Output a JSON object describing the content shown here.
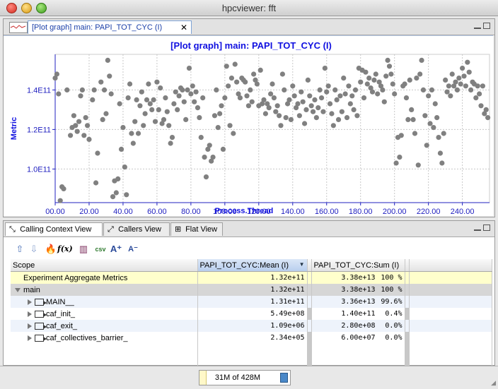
{
  "window": {
    "title": "hpcviewer: fft"
  },
  "plot_tab": {
    "label": "[Plot graph] main: PAPI_TOT_CYC (I)"
  },
  "chart_data": {
    "type": "scatter",
    "title": "[Plot graph] main: PAPI_TOT_CYC (I)",
    "xlabel": "Process.Thread",
    "ylabel": "Metric",
    "xlim": [
      0,
      256
    ],
    "ylim": [
      83000000000.0,
      158000000000.0
    ],
    "xticks": [
      {
        "v": 0,
        "label": "00.00"
      },
      {
        "v": 20,
        "label": "20.00"
      },
      {
        "v": 40,
        "label": "40.00"
      },
      {
        "v": 60,
        "label": "60.00"
      },
      {
        "v": 80,
        "label": "80.00"
      },
      {
        "v": 100,
        "label": "100.00"
      },
      {
        "v": 120,
        "label": "120.00"
      },
      {
        "v": 140,
        "label": "140.00"
      },
      {
        "v": 160,
        "label": "160.00"
      },
      {
        "v": 180,
        "label": "180.00"
      },
      {
        "v": 200,
        "label": "200.00"
      },
      {
        "v": 220,
        "label": "220.00"
      },
      {
        "v": 240,
        "label": "240.00"
      }
    ],
    "yticks": [
      {
        "v": 100000000000.0,
        "label": "1.0E11"
      },
      {
        "v": 120000000000.0,
        "label": "1.2E11"
      },
      {
        "v": 140000000000.0,
        "label": "1.4E11"
      }
    ],
    "grid": true,
    "point_color": "#808080",
    "points": [
      [
        0,
        146000000000.0
      ],
      [
        1,
        148000000000.0
      ],
      [
        2,
        138000000000.0
      ],
      [
        3,
        84000000000.0
      ],
      [
        4,
        91000000000.0
      ],
      [
        5,
        90000000000.0
      ],
      [
        7,
        140000000000.0
      ],
      [
        9,
        117000000000.0
      ],
      [
        10,
        121000000000.0
      ],
      [
        11,
        127000000000.0
      ],
      [
        12,
        122000000000.0
      ],
      [
        13,
        119000000000.0
      ],
      [
        14,
        124000000000.0
      ],
      [
        15,
        137000000000.0
      ],
      [
        16,
        140000000000.0
      ],
      [
        17,
        117000000000.0
      ],
      [
        18,
        126000000000.0
      ],
      [
        19,
        122000000000.0
      ],
      [
        20,
        115000000000.0
      ],
      [
        22,
        135000000000.0
      ],
      [
        23,
        140000000000.0
      ],
      [
        24,
        93000000000.0
      ],
      [
        25,
        108000000000.0
      ],
      [
        27,
        144000000000.0
      ],
      [
        28,
        125000000000.0
      ],
      [
        29,
        140000000000.0
      ],
      [
        30,
        128000000000.0
      ],
      [
        31,
        155000000000.0
      ],
      [
        32,
        147000000000.0
      ],
      [
        33,
        138000000000.0
      ],
      [
        34,
        86000000000.0
      ],
      [
        35,
        94000000000.0
      ],
      [
        36,
        88000000000.0
      ],
      [
        37,
        95000000000.0
      ],
      [
        38,
        133000000000.0
      ],
      [
        39,
        110000000000.0
      ],
      [
        40,
        121000000000.0
      ],
      [
        41,
        101000000000.0
      ],
      [
        42,
        87000000000.0
      ],
      [
        43,
        136000000000.0
      ],
      [
        44,
        143000000000.0
      ],
      [
        45,
        118000000000.0
      ],
      [
        46,
        113000000000.0
      ],
      [
        47,
        124000000000.0
      ],
      [
        48,
        135000000000.0
      ],
      [
        49,
        118000000000.0
      ],
      [
        50,
        132000000000.0
      ],
      [
        51,
        139000000000.0
      ],
      [
        52,
        122000000000.0
      ],
      [
        53,
        128000000000.0
      ],
      [
        54,
        135000000000.0
      ],
      [
        55,
        143000000000.0
      ],
      [
        56,
        133000000000.0
      ],
      [
        57,
        130000000000.0
      ],
      [
        58,
        135000000000.0
      ],
      [
        59,
        124000000000.0
      ],
      [
        60,
        144000000000.0
      ],
      [
        61,
        130000000000.0
      ],
      [
        62,
        141000000000.0
      ],
      [
        63,
        123000000000.0
      ],
      [
        64,
        125000000000.0
      ],
      [
        65,
        136000000000.0
      ],
      [
        66,
        129000000000.0
      ],
      [
        67,
        122000000000.0
      ],
      [
        68,
        113000000000.0
      ],
      [
        69,
        116000000000.0
      ],
      [
        70,
        133000000000.0
      ],
      [
        71,
        139000000000.0
      ],
      [
        72,
        130000000000.0
      ],
      [
        73,
        137000000000.0
      ],
      [
        74,
        141000000000.0
      ],
      [
        75,
        140000000000.0
      ],
      [
        76,
        134000000000.0
      ],
      [
        77,
        125000000000.0
      ],
      [
        78,
        140000000000.0
      ],
      [
        79,
        151000000000.0
      ],
      [
        80,
        138000000000.0
      ],
      [
        81,
        142000000000.0
      ],
      [
        82,
        134000000000.0
      ],
      [
        83,
        139000000000.0
      ],
      [
        84,
        131000000000.0
      ],
      [
        85,
        126000000000.0
      ],
      [
        86,
        116000000000.0
      ],
      [
        87,
        136000000000.0
      ],
      [
        88,
        106000000000.0
      ],
      [
        89,
        96000000000.0
      ],
      [
        90,
        110000000000.0
      ],
      [
        91,
        112000000000.0
      ],
      [
        92,
        104000000000.0
      ],
      [
        93,
        106000000000.0
      ],
      [
        94,
        127000000000.0
      ],
      [
        95,
        140000000000.0
      ],
      [
        96,
        121000000000.0
      ],
      [
        97,
        128000000000.0
      ],
      [
        98,
        132000000000.0
      ],
      [
        99,
        110000000000.0
      ],
      [
        100,
        136000000000.0
      ],
      [
        101,
        152000000000.0
      ],
      [
        102,
        142000000000.0
      ],
      [
        103,
        122000000000.0
      ],
      [
        104,
        146000000000.0
      ],
      [
        105,
        118000000000.0
      ],
      [
        106,
        153000000000.0
      ],
      [
        107,
        144000000000.0
      ],
      [
        108,
        138000000000.0
      ],
      [
        109,
        136000000000.0
      ],
      [
        110,
        146000000000.0
      ],
      [
        111,
        145000000000.0
      ],
      [
        112,
        144000000000.0
      ],
      [
        113,
        137000000000.0
      ],
      [
        114,
        132000000000.0
      ],
      [
        115,
        140000000000.0
      ],
      [
        116,
        134000000000.0
      ],
      [
        117,
        148000000000.0
      ],
      [
        118,
        145000000000.0
      ],
      [
        119,
        143000000000.0
      ],
      [
        120,
        132000000000.0
      ],
      [
        121,
        150000000000.0
      ],
      [
        122,
        133000000000.0
      ],
      [
        123,
        135000000000.0
      ],
      [
        124,
        128000000000.0
      ],
      [
        125,
        133000000000.0
      ],
      [
        126,
        131000000000.0
      ],
      [
        127,
        138000000000.0
      ],
      [
        128,
        143000000000.0
      ],
      [
        129,
        136000000000.0
      ],
      [
        130,
        129000000000.0
      ],
      [
        131,
        132000000000.0
      ],
      [
        132,
        127000000000.0
      ],
      [
        133,
        122000000000.0
      ],
      [
        134,
        148000000000.0
      ],
      [
        135,
        140000000000.0
      ],
      [
        136,
        126000000000.0
      ],
      [
        137,
        133000000000.0
      ],
      [
        138,
        135000000000.0
      ],
      [
        139,
        125000000000.0
      ],
      [
        140,
        142000000000.0
      ],
      [
        141,
        137000000000.0
      ],
      [
        142,
        131000000000.0
      ],
      [
        143,
        133000000000.0
      ],
      [
        144,
        127000000000.0
      ],
      [
        145,
        139000000000.0
      ],
      [
        146,
        134000000000.0
      ],
      [
        147,
        123000000000.0
      ],
      [
        148,
        130000000000.0
      ],
      [
        149,
        145000000000.0
      ],
      [
        150,
        137000000000.0
      ],
      [
        151,
        132000000000.0
      ],
      [
        152,
        129000000000.0
      ],
      [
        153,
        135000000000.0
      ],
      [
        154,
        126000000000.0
      ],
      [
        155,
        131000000000.0
      ],
      [
        156,
        140000000000.0
      ],
      [
        157,
        136000000000.0
      ],
      [
        158,
        129000000000.0
      ],
      [
        159,
        151000000000.0
      ],
      [
        160,
        139000000000.0
      ],
      [
        161,
        142000000000.0
      ],
      [
        162,
        133000000000.0
      ],
      [
        163,
        128000000000.0
      ],
      [
        164,
        122000000000.0
      ],
      [
        165,
        140000000000.0
      ],
      [
        166,
        135000000000.0
      ],
      [
        167,
        125000000000.0
      ],
      [
        168,
        137000000000.0
      ],
      [
        169,
        129000000000.0
      ],
      [
        170,
        146000000000.0
      ],
      [
        171,
        138000000000.0
      ],
      [
        172,
        126000000000.0
      ],
      [
        173,
        142000000000.0
      ],
      [
        174,
        133000000000.0
      ],
      [
        175,
        137000000000.0
      ],
      [
        176,
        130000000000.0
      ],
      [
        177,
        140000000000.0
      ],
      [
        178,
        127000000000.0
      ],
      [
        179,
        151000000000.0
      ],
      [
        180,
        144000000000.0
      ],
      [
        181,
        150000000000.0
      ],
      [
        182,
        136000000000.0
      ],
      [
        183,
        149000000000.0
      ],
      [
        184,
        143000000000.0
      ],
      [
        185,
        146000000000.0
      ],
      [
        186,
        141000000000.0
      ],
      [
        187,
        139000000000.0
      ],
      [
        188,
        145000000000.0
      ],
      [
        189,
        148000000000.0
      ],
      [
        190,
        138000000000.0
      ],
      [
        191,
        144000000000.0
      ],
      [
        192,
        142000000000.0
      ],
      [
        193,
        140000000000.0
      ],
      [
        194,
        134000000000.0
      ],
      [
        195,
        147000000000.0
      ],
      [
        196,
        155000000000.0
      ],
      [
        197,
        152000000000.0
      ],
      [
        198,
        148000000000.0
      ],
      [
        199,
        143000000000.0
      ],
      [
        200,
        138000000000.0
      ],
      [
        201,
        103000000000.0
      ],
      [
        202,
        116000000000.0
      ],
      [
        203,
        106000000000.0
      ],
      [
        204,
        117000000000.0
      ],
      [
        205,
        142000000000.0
      ],
      [
        206,
        143000000000.0
      ],
      [
        207,
        136000000000.0
      ],
      [
        208,
        125000000000.0
      ],
      [
        209,
        145000000000.0
      ],
      [
        210,
        130000000000.0
      ],
      [
        211,
        125000000000.0
      ],
      [
        212,
        118000000000.0
      ],
      [
        213,
        146000000000.0
      ],
      [
        214,
        102000000000.0
      ],
      [
        215,
        148000000000.0
      ],
      [
        216,
        155000000000.0
      ],
      [
        217,
        140000000000.0
      ],
      [
        218,
        127000000000.0
      ],
      [
        219,
        112000000000.0
      ],
      [
        220,
        137000000000.0
      ],
      [
        221,
        123000000000.0
      ],
      [
        222,
        140000000000.0
      ],
      [
        223,
        121000000000.0
      ],
      [
        224,
        133000000000.0
      ],
      [
        225,
        126000000000.0
      ],
      [
        226,
        116000000000.0
      ],
      [
        227,
        108000000000.0
      ],
      [
        228,
        103000000000.0
      ],
      [
        229,
        118000000000.0
      ],
      [
        230,
        145000000000.0
      ],
      [
        231,
        139000000000.0
      ],
      [
        232,
        142000000000.0
      ],
      [
        233,
        137000000000.0
      ],
      [
        234,
        148000000000.0
      ],
      [
        235,
        142000000000.0
      ],
      [
        236,
        144000000000.0
      ],
      [
        237,
        140000000000.0
      ],
      [
        238,
        146000000000.0
      ],
      [
        239,
        143000000000.0
      ],
      [
        240,
        151000000000.0
      ],
      [
        241,
        147000000000.0
      ],
      [
        242,
        142000000000.0
      ],
      [
        243,
        154000000000.0
      ],
      [
        244,
        149000000000.0
      ],
      [
        245,
        140000000000.0
      ],
      [
        246,
        144000000000.0
      ],
      [
        247,
        143000000000.0
      ],
      [
        248,
        136000000000.0
      ],
      [
        249,
        142000000000.0
      ],
      [
        250,
        138000000000.0
      ],
      [
        251,
        132000000000.0
      ],
      [
        252,
        142000000000.0
      ],
      [
        253,
        128000000000.0
      ],
      [
        254,
        130000000000.0
      ],
      [
        255,
        126000000000.0
      ]
    ]
  },
  "bottom_tabs": [
    {
      "label": "Calling Context View",
      "icon": "calling-context-icon"
    },
    {
      "label": "Callers View",
      "icon": "callers-icon"
    },
    {
      "label": "Flat View",
      "icon": "flat-view-icon"
    }
  ],
  "toolbar": {
    "buttons": [
      "zoom-in-icon",
      "zoom-out-icon",
      "hot-path-icon",
      "derived-metric-icon",
      "column-select-icon",
      "export-csv-icon",
      "font-increase-icon",
      "font-decrease-icon"
    ]
  },
  "table": {
    "columns": [
      "Scope",
      "PAPI_TOT_CYC:Mean (I)",
      "PAPI_TOT_CYC:Sum (I)"
    ],
    "rows": [
      {
        "scope": "Experiment Aggregate Metrics",
        "mean": "1.32e+11",
        "sum": "3.38e+13",
        "pct": "100 %",
        "type": "agg"
      },
      {
        "scope": "main",
        "mean": "1.32e+11",
        "sum": "3.38e+13",
        "pct": "100 %",
        "type": "sel"
      },
      {
        "scope": "MAIN__",
        "mean": "1.31e+11",
        "sum": "3.36e+13",
        "pct": "99.6%",
        "type": "alt"
      },
      {
        "scope": "caf_init_",
        "mean": "5.49e+08",
        "sum": "1.40e+11",
        "pct": "0.4%",
        "type": "plain"
      },
      {
        "scope": "caf_exit_",
        "mean": "1.09e+06",
        "sum": "2.80e+08",
        "pct": "0.0%",
        "type": "alt"
      },
      {
        "scope": "caf_collectives_barrier_",
        "mean": "2.34e+05",
        "sum": "6.00e+07",
        "pct": "0.0%",
        "type": "plain"
      }
    ]
  },
  "status": {
    "memory": "31M of 428M",
    "memory_used_fraction": 0.07
  }
}
